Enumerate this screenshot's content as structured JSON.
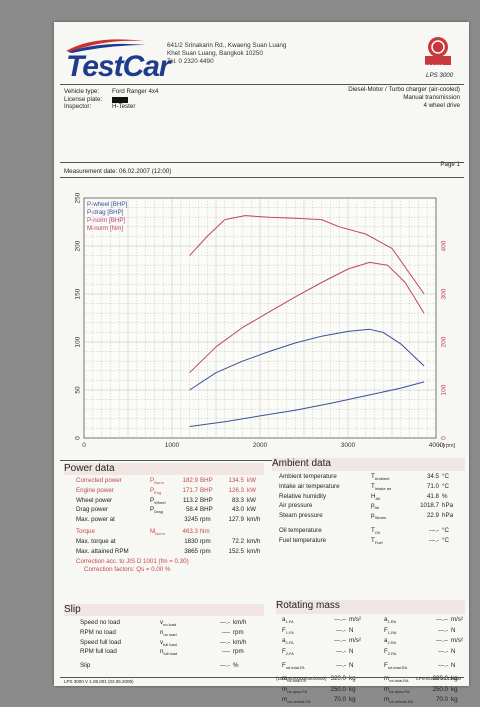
{
  "header": {
    "logo_text": "TestCar",
    "address_lines": [
      "641/2 Srinakarin Rd., Kwaeng Suan Luang",
      "Khet Suan Luang, Bangkok 10250",
      "Tel. 0 2320 4490"
    ],
    "brand": "MAHA",
    "model": "LPS 3000",
    "vehicle_type_label": "Vehicle type:",
    "vehicle_type": "Ford Ranger 4x4",
    "license_label": "License plate:",
    "inspector_label": "Inspector:",
    "inspector": "H-Tester",
    "engine_line": "Diesel-Motor / Turbo charger (air-cooled)",
    "transmission": "Manual transmission",
    "drive": "4 wheel drive",
    "measurement_date": "Measurement date: 06.02.2007 (12:00)",
    "page": "Page 1"
  },
  "chart_data": {
    "type": "line",
    "x_unit": "n [rpm]",
    "xlim": [
      0,
      4000
    ],
    "x_ticks": [
      "0",
      "1000",
      "2000",
      "3000",
      "4000"
    ],
    "y_left_ticks": [
      "0",
      "50",
      "100",
      "150",
      "200",
      "250"
    ],
    "ylim_left": [
      0,
      250
    ],
    "y_right_ticks": [
      "0",
      "100",
      "200",
      "300",
      "400"
    ],
    "ylim_right": [
      0,
      500
    ],
    "legend": [
      "P-wheel [BHP]",
      "P-drag [BHP]",
      "P-norm [BHP]",
      "M-norm [Nm]"
    ],
    "series": [
      {
        "name": "P-wheel [BHP]",
        "color": "#3a4f9a",
        "axis": "left",
        "x": [
          1200,
          1500,
          1800,
          2100,
          2400,
          2700,
          3000,
          3245,
          3400,
          3600,
          3865
        ],
        "y": [
          50,
          68,
          80,
          90,
          99,
          106,
          111,
          113.2,
          110,
          98,
          75
        ]
      },
      {
        "name": "P-drag [BHP]",
        "color": "#3a4f9a",
        "axis": "left",
        "x": [
          1200,
          1600,
          2000,
          2400,
          2800,
          3200,
          3600,
          3865
        ],
        "y": [
          12,
          17,
          23,
          29,
          36,
          44,
          52,
          58.4
        ]
      },
      {
        "name": "P-norm [BHP]",
        "color": "#c0407a",
        "axis": "left",
        "x": [
          1200,
          1500,
          1800,
          2100,
          2400,
          2700,
          3000,
          3245,
          3450,
          3650,
          3865
        ],
        "y": [
          68,
          95,
          115,
          131,
          147,
          162,
          176,
          182.9,
          180,
          162,
          130
        ]
      },
      {
        "name": "M-norm [Nm]",
        "color": "#c0407a",
        "axis": "right",
        "x": [
          1200,
          1400,
          1600,
          1830,
          2100,
          2400,
          2700,
          2900,
          3200,
          3500,
          3865
        ],
        "y": [
          380,
          420,
          455,
          463.3,
          460,
          458,
          455,
          440,
          425,
          395,
          300
        ]
      }
    ]
  },
  "power": {
    "title": "Power data",
    "rows": [
      {
        "label": "Corrected power",
        "sym": "P",
        "sub": "Norm",
        "v1": "182.9",
        "u1": "BHP",
        "v2": "134.5",
        "u2": "kW",
        "red": true
      },
      {
        "label": "Engine power",
        "sym": "P",
        "sub": "Eng",
        "v1": "171.7",
        "u1": "BHP",
        "v2": "126.3",
        "u2": "kW",
        "red": true
      },
      {
        "label": "Wheel power",
        "sym": "P",
        "sub": "Wheel",
        "v1": "113.2",
        "u1": "BHP",
        "v2": "83.3",
        "u2": "kW",
        "red": false
      },
      {
        "label": "Drag power",
        "sym": "P",
        "sub": "Drag",
        "v1": "58.4",
        "u1": "BHP",
        "v2": "43.0",
        "u2": "kW",
        "red": false
      },
      {
        "label": "Max. power at",
        "sym": "",
        "sub": "",
        "v1": "3245",
        "u1": "rpm",
        "v2": "127.9",
        "u2": "km/h",
        "red": false
      }
    ],
    "torque_label": "Torque",
    "torque_sym": "M",
    "torque_sub": "Norm",
    "torque_value": "463.3",
    "torque_unit": "Nm",
    "max_torque_label": "Max. torque at",
    "max_torque_rpm": "1830",
    "max_torque_speed": "72.2",
    "max_rpm_label": "Max. attained RPM",
    "max_rpm": "3865",
    "max_rpm_speed": "152.5",
    "correction": "Correction acc. to JIS D 1001 (fm = 0.30)",
    "factors": "Correction factors: Qs = 0.00 %"
  },
  "ambient": {
    "title": "Ambient data",
    "rows": [
      {
        "label": "Ambient temperature",
        "sym": "T",
        "sub": "Ambient",
        "value": "34.5",
        "unit": "°C"
      },
      {
        "label": "Intake air temperature",
        "sym": "T",
        "sub": "Intake air",
        "value": "71.0",
        "unit": "°C"
      },
      {
        "label": "Relative humidity",
        "sym": "H",
        "sub": "Air",
        "value": "41.8",
        "unit": "%"
      },
      {
        "label": "Air pressure",
        "sym": "p",
        "sub": "Air",
        "value": "1018.7",
        "unit": "hPa"
      },
      {
        "label": "Steam pressure",
        "sym": "p",
        "sub": "Steam",
        "value": "22.9",
        "unit": "hPa"
      },
      {
        "label": "Oil temperature",
        "sym": "T",
        "sub": "Oil",
        "value": "---.-",
        "unit": "°C"
      },
      {
        "label": "Fuel temperature",
        "sym": "T",
        "sub": "Fuel",
        "value": "---.-",
        "unit": "°C"
      }
    ]
  },
  "slip": {
    "title": "Slip",
    "rows": [
      {
        "label": "Speed no load",
        "sym": "v",
        "sub": "no load",
        "value": "---.-",
        "unit": "km/h"
      },
      {
        "label": "RPM no load",
        "sym": "n",
        "sub": "no load",
        "value": "----",
        "unit": "rpm"
      },
      {
        "label": "Speed full load",
        "sym": "v",
        "sub": "full load",
        "value": "---.-",
        "unit": "km/h"
      },
      {
        "label": "RPM full load",
        "sym": "n",
        "sub": "full load",
        "value": "----",
        "unit": "rpm"
      },
      {
        "label": "Slip",
        "sym": "",
        "sub": "",
        "value": "---.-",
        "unit": "%"
      }
    ]
  },
  "rotating": {
    "title": "Rotating mass",
    "rows_left": [
      {
        "sym": "a",
        "sub": "1-FA",
        "value": "---.--",
        "unit": "m/s²"
      },
      {
        "sym": "F",
        "sub": "1-FA",
        "value": "---.-",
        "unit": "N"
      },
      {
        "sym": "a",
        "sub": "2-FA",
        "value": "---.--",
        "unit": "m/s²"
      },
      {
        "sym": "F",
        "sub": "2-FA",
        "value": "---.-",
        "unit": "N"
      },
      {
        "sym": "F",
        "sub": "rot-total-FA",
        "value": "---.-",
        "unit": "N"
      },
      {
        "sym": "m",
        "sub": "rot-total-FA",
        "value": "320.0",
        "unit": "kg"
      },
      {
        "sym": "m",
        "sub": "rot-dyno-FA",
        "value": "250.0",
        "unit": "kg"
      },
      {
        "sym": "m",
        "sub": "rot-vehicle-FA",
        "value": "70.0",
        "unit": "kg"
      }
    ],
    "rows_right": [
      {
        "sym": "a",
        "sub": "1-RA",
        "value": "---.--",
        "unit": "m/s²"
      },
      {
        "sym": "F",
        "sub": "1-RA",
        "value": "---.-",
        "unit": "N"
      },
      {
        "sym": "a",
        "sub": "2-RA",
        "value": "---.--",
        "unit": "m/s²"
      },
      {
        "sym": "F",
        "sub": "2-RA",
        "value": "---.-",
        "unit": "N"
      },
      {
        "sym": "F",
        "sub": "rot-total-RA",
        "value": "---.-",
        "unit": "N"
      },
      {
        "sym": "m",
        "sub": "rot-total-RA",
        "value": "320.0",
        "unit": "kg"
      },
      {
        "sym": "m",
        "sub": "rot-dyno-RA",
        "value": "250.0",
        "unit": "kg"
      },
      {
        "sym": "m",
        "sub": "rot-vehicle-RA",
        "value": "70.0",
        "unit": "kg"
      }
    ]
  },
  "footer": {
    "left": "LPS 3000 V 1.08.001 (03.05.2005)",
    "center": "(100/000/0000/000/0000)",
    "right": "LPS-EURO V1.13.000"
  },
  "colors": {
    "accent_blue": "#1e3b8e",
    "accent_red": "#c0407a",
    "panel": "#f1e6e3"
  }
}
